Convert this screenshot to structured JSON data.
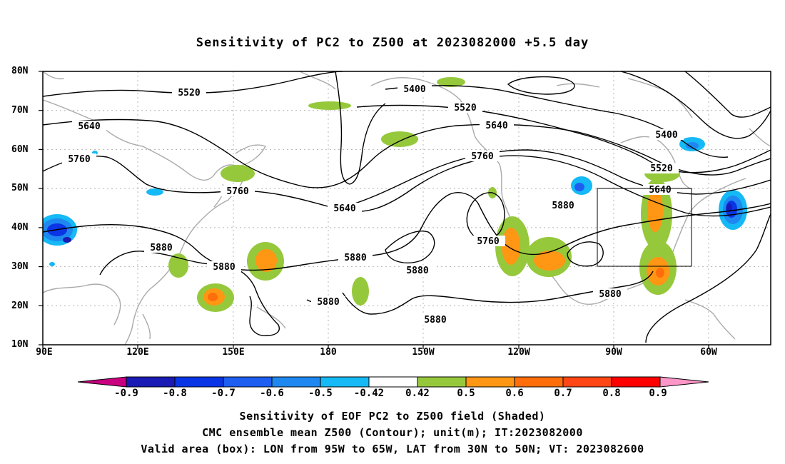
{
  "title": "Sensitivity of PC2 to Z500 at 2023082000 +5.5 day",
  "lat_labels": [
    "80N",
    "70N",
    "60N",
    "50N",
    "40N",
    "30N",
    "20N",
    "10N"
  ],
  "lon_labels": [
    "90E",
    "120E",
    "150E",
    "180",
    "150W",
    "120W",
    "90W",
    "60W"
  ],
  "contour_labels": [
    "5400",
    "5520",
    "5640",
    "5760",
    "5880"
  ],
  "colorbar_labels": [
    "-0.9",
    "-0.8",
    "-0.7",
    "-0.6",
    "-0.5",
    "-0.42",
    "0.42",
    "0.5",
    "0.6",
    "0.7",
    "0.8",
    "0.9"
  ],
  "colorbar_colors": [
    "#c8007f",
    "#1a1ab4",
    "#0a35e6",
    "#1e5ef0",
    "#1e88f0",
    "#14b9f5",
    "#ffffff",
    "#96c83c",
    "#ff9614",
    "#ff6e0a",
    "#ff4614",
    "#ff0000",
    "#ff96c8"
  ],
  "captions": {
    "line1": "Sensitivity of EOF PC2 to Z500 field (Shaded)",
    "line2": "CMC ensemble mean Z500 (Contour); unit(m); IT:2023082000",
    "line3": "Valid area (box): LON from 95W to 65W, LAT from 30N to 50N; VT: 2023082600"
  },
  "valid_box": {
    "lon_min": -95,
    "lon_max": -65,
    "lat_min": 30,
    "lat_max": 50
  }
}
